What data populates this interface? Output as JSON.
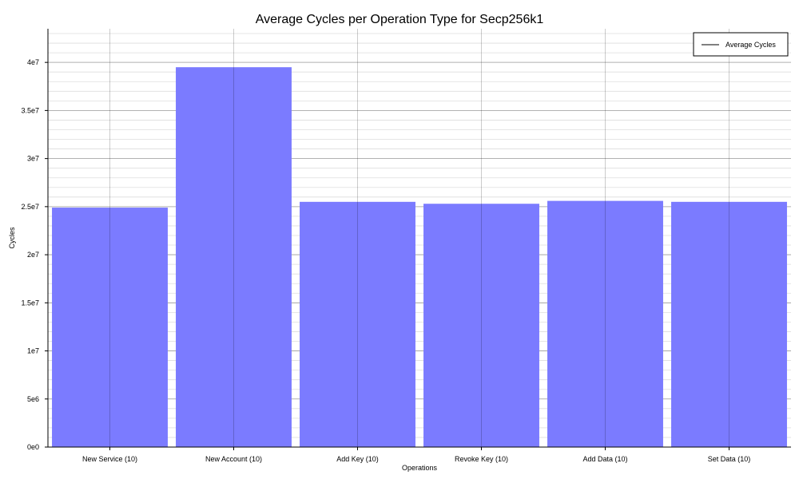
{
  "chart_data": {
    "type": "bar",
    "title": "Average Cycles per Operation Type for Secp256k1",
    "xlabel": "Operations",
    "ylabel": "Cycles",
    "categories": [
      "New Service (10)",
      "New Account (10)",
      "Add Key (10)",
      "Revoke Key (10)",
      "Add Data (10)",
      "Set Data (10)"
    ],
    "series": [
      {
        "name": "Average Cycles",
        "values": [
          24900000,
          39500000,
          25500000,
          25300000,
          25600000,
          25500000
        ]
      }
    ],
    "ylim": [
      0,
      43500000
    ],
    "yticks": [
      0,
      5000000,
      10000000,
      15000000,
      20000000,
      25000000,
      30000000,
      35000000,
      40000000
    ],
    "ytick_labels": [
      "0e0",
      "5e6",
      "1e7",
      "1.5e7",
      "2e7",
      "2.5e7",
      "3e7",
      "3.5e7",
      "4e7"
    ],
    "grid": "major and minor",
    "legend_position": "top-right",
    "colors": {
      "bar": "#7b7bff",
      "grid_major": "#9e9e9e",
      "grid_minor": "#dddddd",
      "axis": "#000000"
    }
  }
}
